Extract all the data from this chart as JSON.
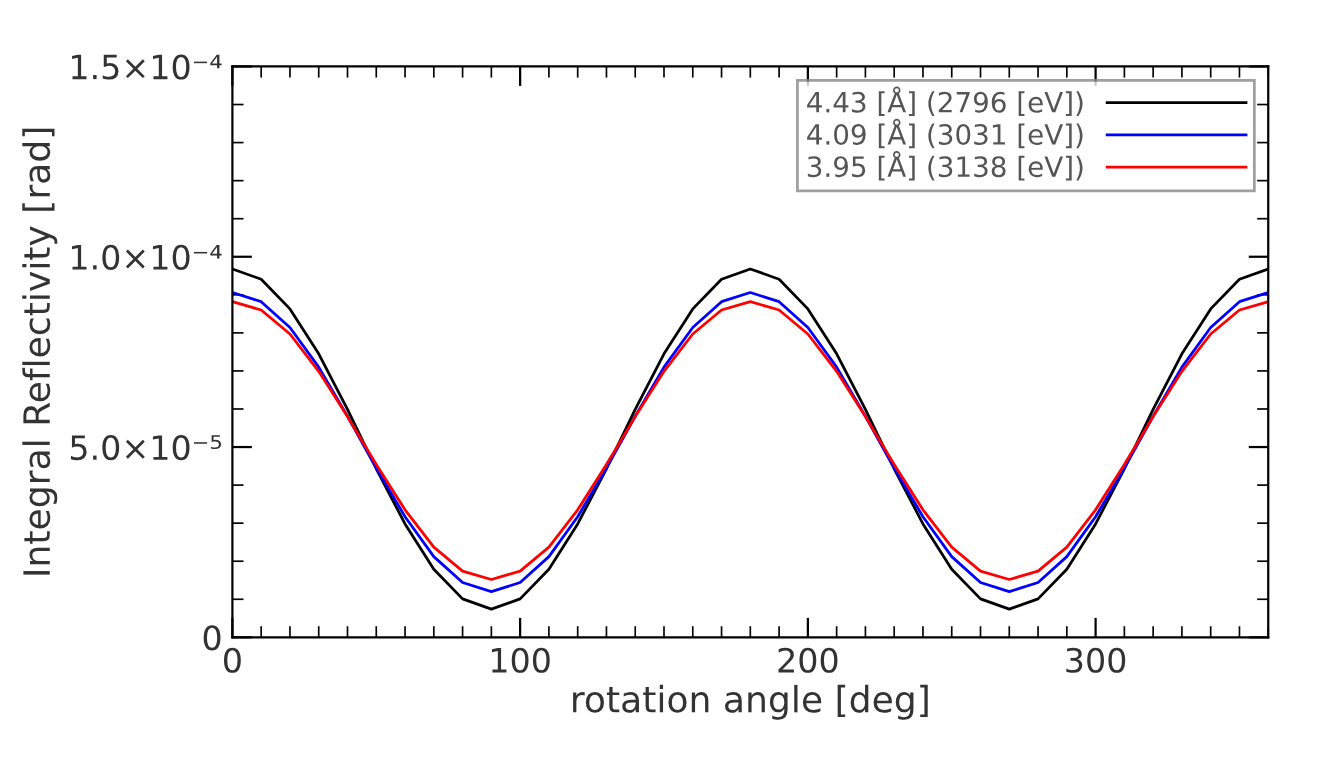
{
  "chart_data": {
    "type": "line",
    "xlabel": "rotation angle [deg]",
    "ylabel": "Integral Reflectivity [rad]",
    "x": [
      0,
      10,
      20,
      30,
      40,
      50,
      60,
      70,
      80,
      90,
      100,
      110,
      120,
      130,
      140,
      150,
      160,
      170,
      180,
      190,
      200,
      210,
      220,
      230,
      240,
      250,
      260,
      270,
      280,
      290,
      300,
      310,
      320,
      330,
      340,
      350,
      360
    ],
    "series": [
      {
        "name": "4.43 [Å] (2796 [eV])",
        "color": "#000000",
        "values": [
          9.68e-05,
          9.41e-05,
          8.63e-05,
          7.45e-05,
          5.99e-05,
          4.43e-05,
          2.98e-05,
          1.79e-05,
          1.01e-05,
          7.4e-06,
          1.01e-05,
          1.79e-05,
          2.98e-05,
          4.43e-05,
          5.99e-05,
          7.45e-05,
          8.63e-05,
          9.41e-05,
          9.68e-05,
          9.41e-05,
          8.63e-05,
          7.45e-05,
          5.99e-05,
          4.43e-05,
          2.98e-05,
          1.79e-05,
          1.01e-05,
          7.4e-06,
          1.01e-05,
          1.79e-05,
          2.98e-05,
          4.43e-05,
          5.99e-05,
          7.45e-05,
          8.63e-05,
          9.41e-05,
          9.68e-05
        ]
      },
      {
        "name": "4.09 [Å] (3031 [eV])",
        "color": "#0000ff",
        "values": [
          9.06e-05,
          8.82e-05,
          8.14e-05,
          7.1e-05,
          5.81e-05,
          4.45e-05,
          3.17e-05,
          2.12e-05,
          1.44e-05,
          1.2e-05,
          1.44e-05,
          2.12e-05,
          3.17e-05,
          4.45e-05,
          5.81e-05,
          7.1e-05,
          8.14e-05,
          8.82e-05,
          9.06e-05,
          8.82e-05,
          8.14e-05,
          7.1e-05,
          5.81e-05,
          4.45e-05,
          3.17e-05,
          2.12e-05,
          1.44e-05,
          1.2e-05,
          1.44e-05,
          2.12e-05,
          3.17e-05,
          4.45e-05,
          5.81e-05,
          7.1e-05,
          8.14e-05,
          8.82e-05,
          9.06e-05
        ]
      },
      {
        "name": "3.95 [Å] (3138 [eV])",
        "color": "#ff0000",
        "values": [
          8.82e-05,
          8.6e-05,
          7.97e-05,
          6.99e-05,
          5.8e-05,
          4.54e-05,
          3.35e-05,
          2.37e-05,
          1.74e-05,
          1.52e-05,
          1.74e-05,
          2.37e-05,
          3.35e-05,
          4.54e-05,
          5.8e-05,
          6.99e-05,
          7.97e-05,
          8.6e-05,
          8.82e-05,
          8.6e-05,
          7.97e-05,
          6.99e-05,
          5.8e-05,
          4.54e-05,
          3.35e-05,
          2.37e-05,
          1.74e-05,
          1.52e-05,
          1.74e-05,
          2.37e-05,
          3.35e-05,
          4.54e-05,
          5.8e-05,
          6.99e-05,
          7.97e-05,
          8.6e-05,
          8.82e-05
        ]
      }
    ],
    "xlim": [
      0,
      360
    ],
    "xticks": [
      0,
      100,
      200,
      300
    ],
    "ylim": [
      0,
      0.00015
    ],
    "yticks": [
      {
        "value": 0,
        "label": "0"
      },
      {
        "value": 5e-05,
        "label": "5.0×10⁻⁵"
      },
      {
        "value": 0.0001,
        "label": "1.0×10⁻⁴"
      },
      {
        "value": 0.00015,
        "label": "1.5×10⁻⁴"
      }
    ],
    "legend": "top right",
    "grid": false
  }
}
